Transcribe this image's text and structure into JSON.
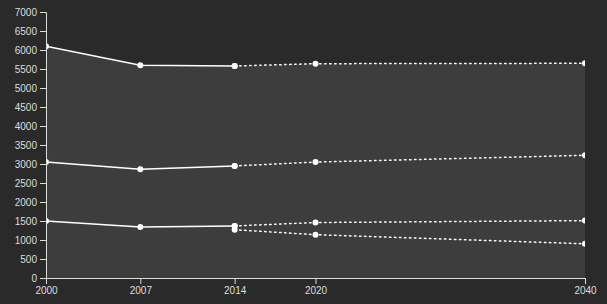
{
  "chart_data": {
    "type": "line",
    "x": [
      2000,
      2007,
      2014,
      2020,
      2040
    ],
    "xlim": [
      2000,
      2040
    ],
    "xticks": [
      2000,
      2007,
      2014,
      2020,
      2040
    ],
    "ylim": [
      0,
      7000
    ],
    "yticks": [
      0,
      500,
      1000,
      1500,
      2000,
      2500,
      3000,
      3500,
      4000,
      4500,
      5000,
      5500,
      6000,
      6500,
      7000
    ],
    "grid": false,
    "series": [
      {
        "type": "area",
        "color": "#3d3d3d",
        "values": [
          6100,
          5600,
          5580,
          5640,
          5650
        ]
      },
      {
        "color": "#ffffff",
        "line_style": "solid",
        "marker": "circle",
        "values": [
          6100,
          5600,
          5580,
          null,
          null
        ]
      },
      {
        "color": "#ffffff",
        "line_style": "dotted",
        "marker": "circle",
        "values": [
          null,
          null,
          5580,
          5640,
          5650
        ]
      },
      {
        "color": "#ffffff",
        "line_style": "solid",
        "marker": "circle",
        "values": [
          3050,
          2860,
          2950,
          null,
          null
        ]
      },
      {
        "color": "#ffffff",
        "line_style": "dotted",
        "marker": "circle",
        "values": [
          null,
          null,
          2950,
          3050,
          3230
        ]
      },
      {
        "color": "#ffffff",
        "line_style": "solid",
        "marker": "circle",
        "values": [
          1500,
          1340,
          1370,
          null,
          null
        ]
      },
      {
        "color": "#ffffff",
        "line_style": "dotted",
        "marker": "circle",
        "values": [
          null,
          null,
          1370,
          1460,
          1510
        ]
      },
      {
        "color": "#ffffff",
        "line_style": "dotted",
        "marker": "circle",
        "values": [
          null,
          null,
          1270,
          1140,
          900
        ]
      }
    ]
  }
}
